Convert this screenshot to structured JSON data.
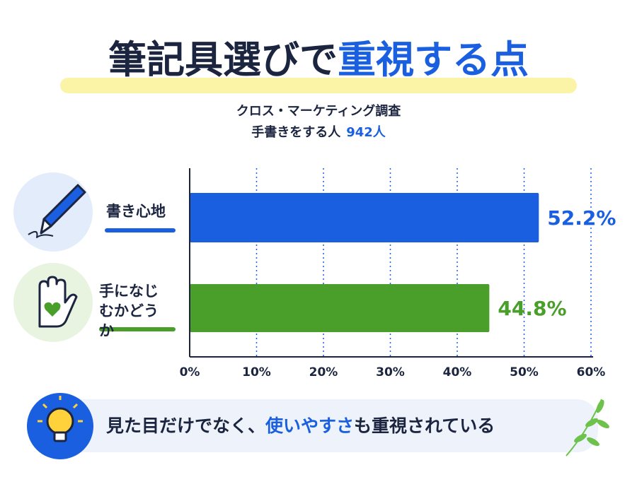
{
  "chart_data": {
    "type": "bar",
    "orientation": "horizontal",
    "title_parts": [
      "筆記具選びで",
      "重視する点"
    ],
    "subtitle_lines": [
      "クロス・マーケティング調査",
      "手書きをする人"
    ],
    "sample": "942人",
    "categories": [
      "書き心地",
      "手になじむかどうか"
    ],
    "values": [
      52.2,
      44.8
    ],
    "value_labels": [
      "52.2%",
      "44.8%"
    ],
    "colors": [
      "#1a5fe0",
      "#4a9e2a"
    ],
    "xlim": [
      0,
      60
    ],
    "xticks": [
      {
        "value": 0,
        "label": "0%"
      },
      {
        "value": 10,
        "label": "10%"
      },
      {
        "value": 20,
        "label": "20%"
      },
      {
        "value": 30,
        "label": "30%"
      },
      {
        "value": 40,
        "label": "40%"
      },
      {
        "value": 50,
        "label": "50%"
      },
      {
        "value": 60,
        "label": "60%"
      }
    ],
    "grid": true,
    "footer_parts": [
      "見た目だけでなく、",
      "使いやすさ",
      "も重視されている"
    ]
  }
}
